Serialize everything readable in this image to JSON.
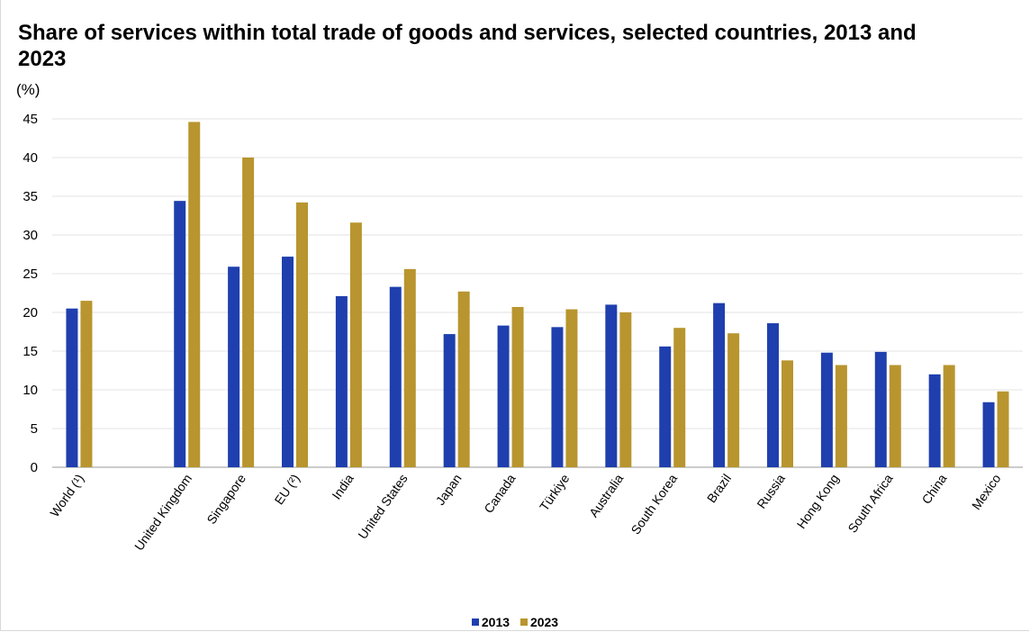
{
  "chart_data": {
    "type": "bar",
    "title": "Share of services within total trade of goods and services, selected countries, 2013 and 2023",
    "ylabel": "(%)",
    "ylim": [
      0,
      45
    ],
    "yticks": [
      0,
      5,
      10,
      15,
      20,
      25,
      30,
      35,
      40,
      45
    ],
    "grid": true,
    "legend_position": "bottom-center",
    "categories": [
      "World (¹)",
      "",
      "United Kingdom",
      "Singapore",
      "EU (²)",
      "India",
      "United States",
      "Japan",
      "Canada",
      "Türkiye",
      "Australia",
      "South Korea",
      "Brazil",
      "Russia",
      "Hong Kong",
      "South Africa",
      "China",
      "Mexico"
    ],
    "series": [
      {
        "name": "2013",
        "color": "#1f3fae",
        "values": [
          20.5,
          null,
          34.4,
          25.9,
          27.2,
          22.1,
          23.3,
          17.2,
          18.3,
          18.1,
          21.0,
          15.6,
          21.2,
          18.6,
          14.8,
          14.9,
          12.0,
          8.4
        ]
      },
      {
        "name": "2023",
        "color": "#b8952e",
        "values": [
          21.5,
          null,
          44.6,
          40.0,
          34.2,
          31.6,
          25.6,
          22.7,
          20.7,
          20.4,
          20.0,
          18.0,
          17.3,
          13.8,
          13.2,
          13.2,
          13.2,
          9.8
        ]
      }
    ]
  }
}
